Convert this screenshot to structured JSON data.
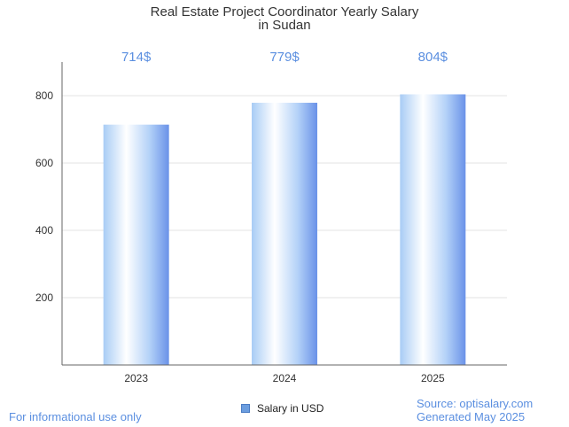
{
  "chart_data": {
    "type": "bar",
    "title": "Real Estate Project Coordinator Yearly Salary",
    "subtitle": "in Sudan",
    "categories": [
      "2023",
      "2024",
      "2025"
    ],
    "values": [
      714,
      779,
      804
    ],
    "data_labels": [
      "714$",
      "779$",
      "804$"
    ],
    "yticks": [
      200,
      400,
      600,
      800
    ],
    "ylim": [
      0,
      900
    ],
    "grid": true,
    "legend": {
      "label": "Salary in USD",
      "position": "bottom"
    }
  },
  "footer": {
    "left_note": "For informational use only",
    "source": "Source: optisalary.com",
    "generated": "Generated May 2025"
  },
  "colors": {
    "bar_light": "#ffffff",
    "bar_mid": "#a8ccf5",
    "bar_dark": "#6a92e8",
    "label": "#5b8fe0",
    "grid": "#e3e3e3",
    "axis": "#666666"
  }
}
